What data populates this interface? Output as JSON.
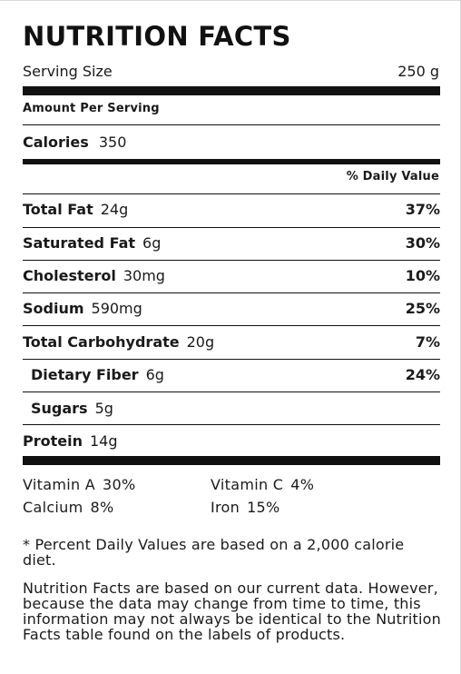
{
  "title": "NUTRITION FACTS",
  "serving": {
    "label": "Serving Size",
    "value": "250 g"
  },
  "amount_per_serving": "Amount Per Serving",
  "calories": {
    "label": "Calories",
    "value": "350"
  },
  "daily_value_header": "% Daily Value",
  "nutrients": [
    {
      "name": "Total Fat",
      "amount": "24g",
      "percent": "37%"
    },
    {
      "name": "Saturated Fat",
      "amount": "6g",
      "percent": "30%"
    },
    {
      "name": "Cholesterol",
      "amount": "30mg",
      "percent": "10%"
    },
    {
      "name": "Sodium",
      "amount": "590mg",
      "percent": "25%"
    },
    {
      "name": "Total Carbohydrate",
      "amount": "20g",
      "percent": "7%"
    },
    {
      "name": "Dietary Fiber",
      "amount": "6g",
      "percent": "24%"
    },
    {
      "name": "Sugars",
      "amount": "5g",
      "percent": ""
    },
    {
      "name": "Protein",
      "amount": "14g",
      "percent": ""
    }
  ],
  "vitamins": [
    {
      "name": "Vitamin A",
      "value": "30%"
    },
    {
      "name": "Vitamin C",
      "value": "4%"
    },
    {
      "name": "Calcium",
      "value": "8%"
    },
    {
      "name": "Iron",
      "value": "15%"
    }
  ],
  "footnote": "* Percent Daily Values are based on a 2,000 calorie diet.",
  "disclaimer": "Nutrition Facts are based on our current data. However, because the data may change from time to time, this information may not always be identical to the Nutrition Facts table found on the labels of products."
}
